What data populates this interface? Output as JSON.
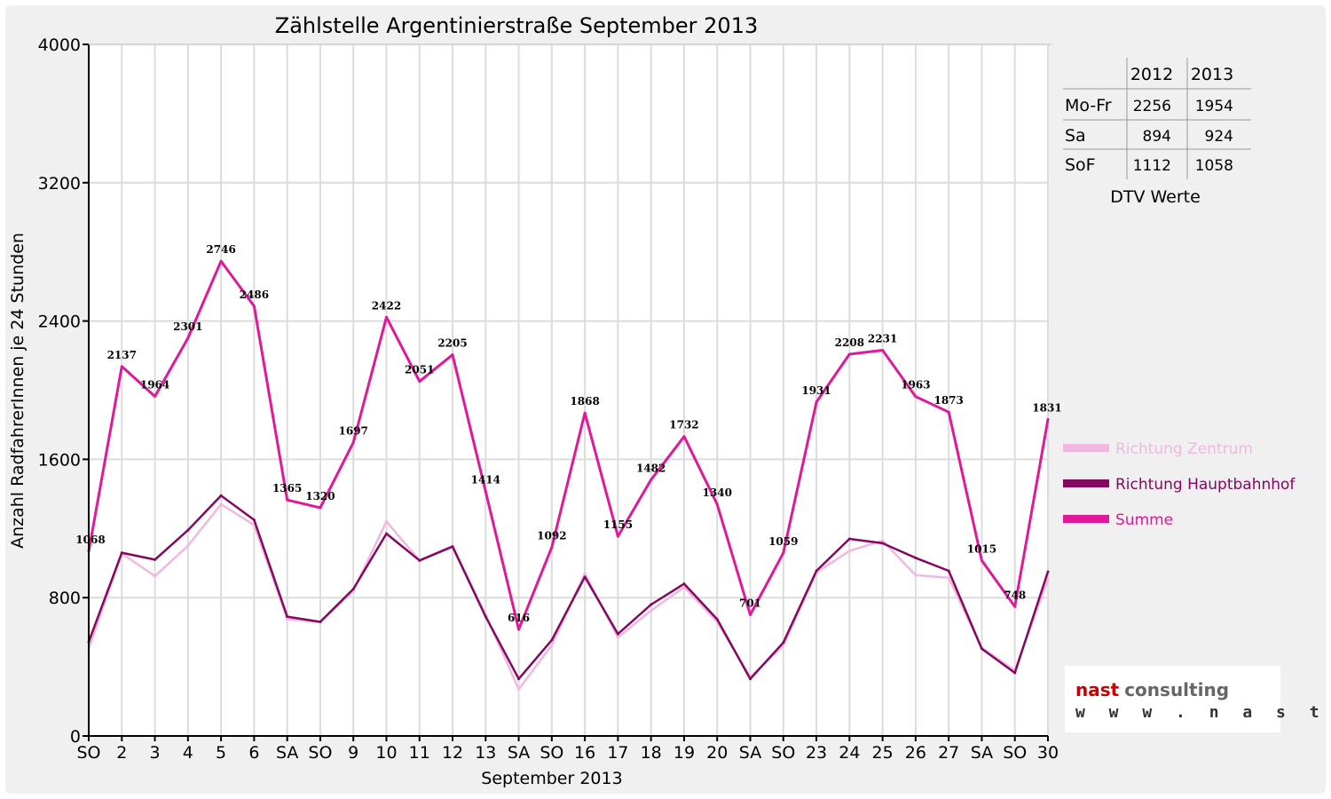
{
  "chart_data": {
    "type": "line",
    "title": "Zählstelle Argentinierstraße September 2013",
    "xlabel": "September 2013",
    "ylabel": "Anzahl RadfahrerInnen je 24 Stunden",
    "ylim": [
      0,
      4000
    ],
    "yticks": [
      "0",
      "800",
      "1600",
      "2400",
      "3200",
      "4000"
    ],
    "categories": [
      "SO",
      "2",
      "3",
      "4",
      "5",
      "6",
      "SA",
      "SO",
      "9",
      "10",
      "11",
      "12",
      "13",
      "SA",
      "SO",
      "16",
      "17",
      "18",
      "19",
      "20",
      "SA",
      "SO",
      "23",
      "24",
      "25",
      "26",
      "27",
      "SA",
      "SO",
      "30"
    ],
    "holiday_flags": [
      true,
      false,
      false,
      false,
      false,
      false,
      false,
      true,
      false,
      false,
      false,
      false,
      false,
      false,
      true,
      false,
      false,
      false,
      false,
      false,
      false,
      true,
      false,
      false,
      false,
      false,
      false,
      false,
      true,
      false
    ],
    "grid": true,
    "legend_position": "right",
    "series": [
      {
        "name": "Richtung Zentrum",
        "color": "#f0b8de",
        "values": [
          505,
          1055,
          925,
          1100,
          1340,
          1220,
          675,
          660,
          840,
          1240,
          1015,
          1100,
          700,
          270,
          525,
          940,
          570,
          725,
          860,
          660,
          340,
          525,
          945,
          1070,
          1130,
          930,
          915,
          510,
          380,
          905
        ]
      },
      {
        "name": "Richtung Hauptbahnhof",
        "color": "#850860",
        "values": [
          545,
          1060,
          1020,
          1190,
          1390,
          1250,
          690,
          660,
          850,
          1170,
          1015,
          1095,
          690,
          330,
          555,
          920,
          590,
          760,
          880,
          675,
          330,
          540,
          955,
          1140,
          1115,
          1030,
          955,
          505,
          365,
          950
        ]
      },
      {
        "name": "Summe",
        "color": "#e0189a",
        "values": [
          1068,
          2137,
          1964,
          2301,
          2746,
          2486,
          1365,
          1320,
          1697,
          2422,
          2051,
          2205,
          1414,
          616,
          1092,
          1868,
          1155,
          1482,
          1732,
          1340,
          701,
          1059,
          1931,
          2208,
          2231,
          1963,
          1873,
          1015,
          748,
          1831
        ]
      }
    ],
    "data_labels": [
      "1068",
      "2137",
      "1964",
      "2301",
      "2746",
      "2486",
      "1365",
      "1320",
      "1697",
      "2422",
      "2051",
      "2205",
      "1414",
      "616",
      "1092",
      "1868",
      "1155",
      "1482",
      "1732",
      "1340",
      "701",
      "1059",
      "1931",
      "2208",
      "2231",
      "1963",
      "1873",
      "1015",
      "748",
      "1831"
    ]
  },
  "dtv_table": {
    "headers": [
      "",
      "2012",
      "2013"
    ],
    "rows": [
      [
        "Mo-Fr",
        "2256",
        "1954"
      ],
      [
        "Sa",
        "894",
        "924"
      ],
      [
        "SoF",
        "1112",
        "1058"
      ]
    ],
    "caption": "DTV Werte"
  },
  "logo": {
    "name": "nast consulting",
    "url": "w w w . n a s t . a t"
  },
  "colors": {
    "holiday_red": "#ff0000",
    "logo_red": "#cc0000",
    "logo_grey": "#666666",
    "background": "#f0f0f0"
  }
}
